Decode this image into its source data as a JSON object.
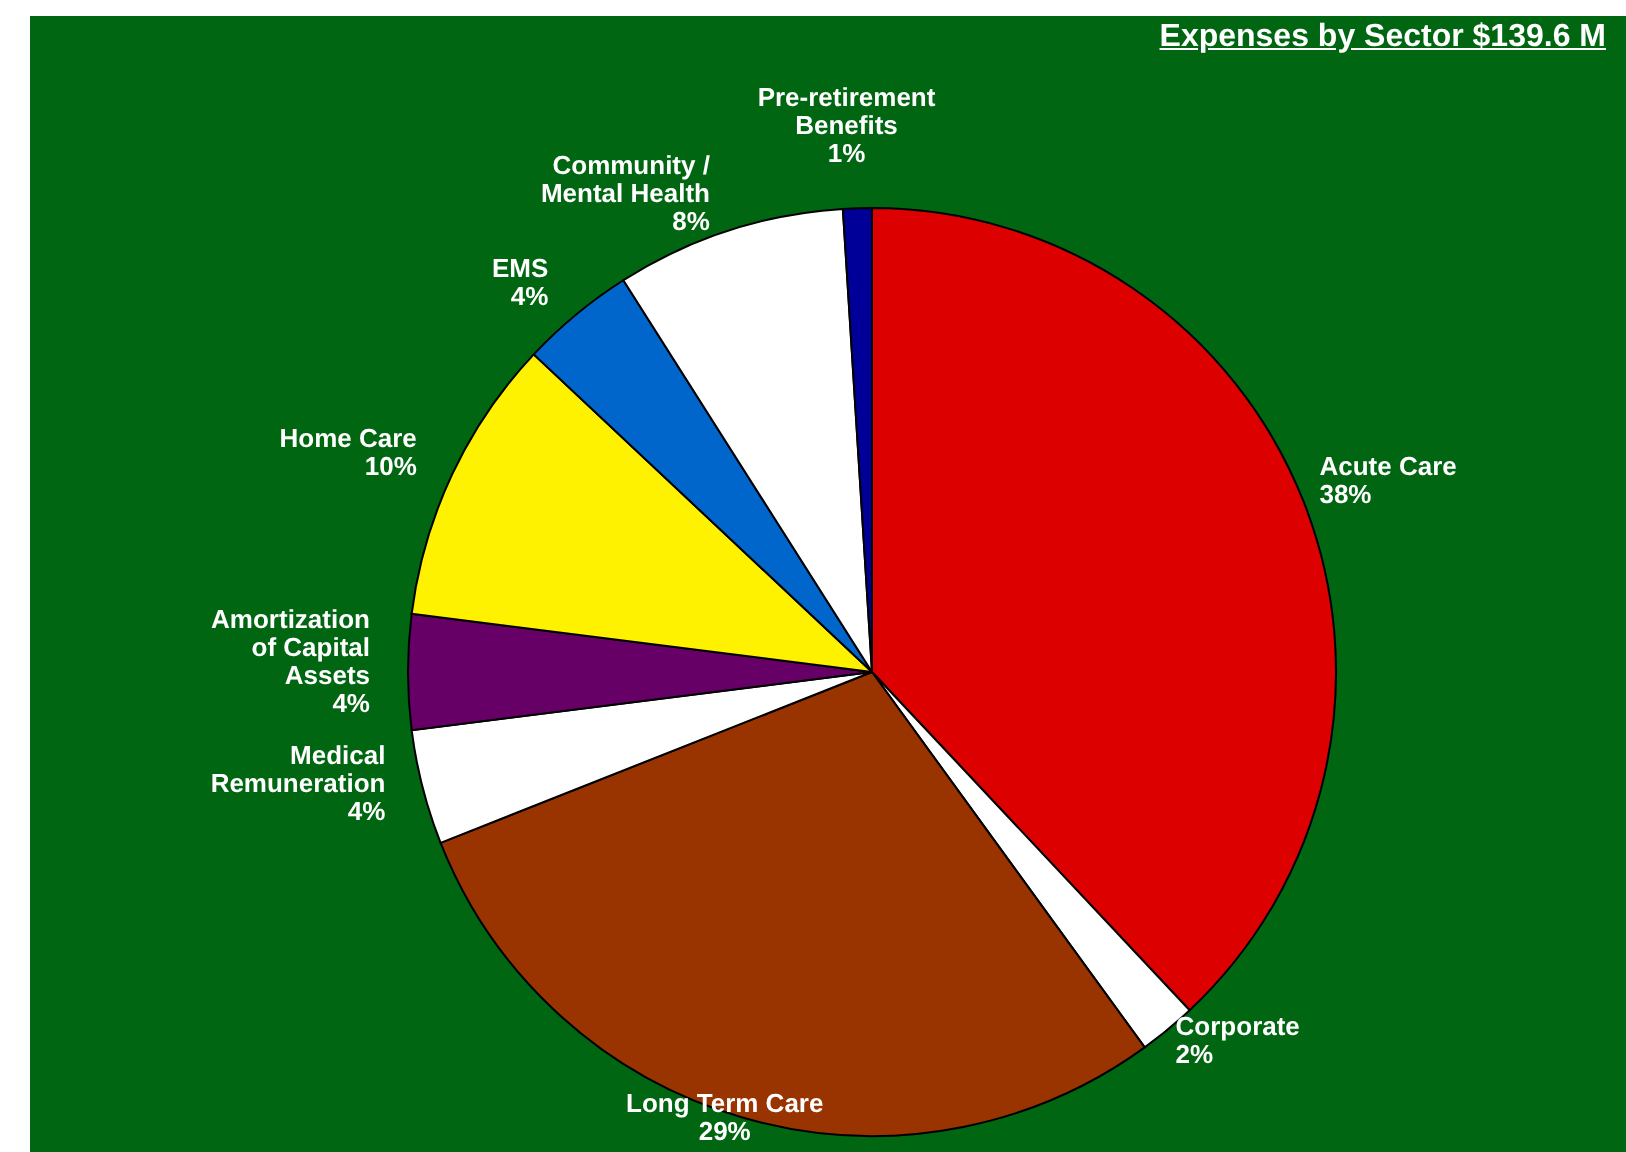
{
  "chart_data": {
    "type": "pie",
    "title": "Expenses by Sector $139.6 M",
    "categories": [
      "Acute Care",
      "Corporate",
      "Long Term Care",
      "Medical Remuneration",
      "Amortization of Capital Assets",
      "Home Care",
      "EMS",
      "Community / Mental Health",
      "Pre-retirement Benefits"
    ],
    "values": [
      38,
      2,
      29,
      4,
      4,
      10,
      4,
      8,
      1
    ],
    "colors": [
      "#dd0000",
      "#ffffff",
      "#993300",
      "#ffffff",
      "#660066",
      "#fff200",
      "#0066cc",
      "#ffffff",
      "#000099"
    ],
    "value_labels": [
      "38%",
      "2%",
      "29%",
      "4%",
      "4%",
      "10%",
      "4%",
      "8%",
      "1%"
    ],
    "legend": false
  }
}
